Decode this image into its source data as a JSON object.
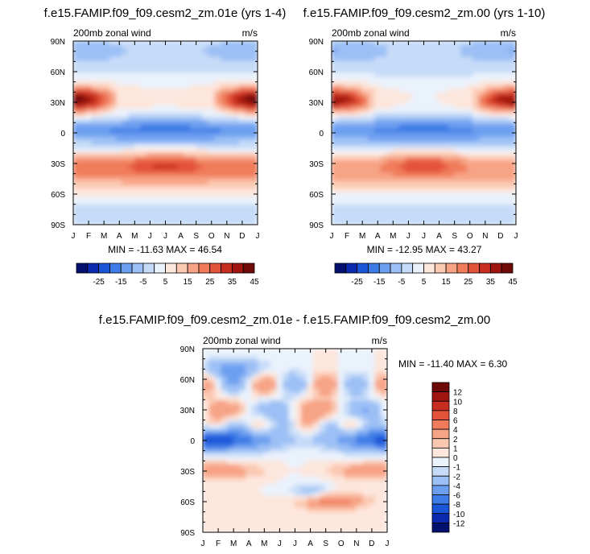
{
  "colors": {
    "abs_scale": [
      "#04106e",
      "#0a2bb0",
      "#1a56d8",
      "#3d7ce6",
      "#6d9ff0",
      "#9cc0f5",
      "#c6dbf8",
      "#eaf2fc",
      "#fde6dc",
      "#fbc9b2",
      "#f7a385",
      "#f07c5c",
      "#e3533a",
      "#c72e1f",
      "#a01510",
      "#6e0a08"
    ],
    "diff_scale": [
      "#04106e",
      "#0a2bb0",
      "#1a56d8",
      "#3d7ce6",
      "#6d9ff0",
      "#9cc0f5",
      "#c6dbf8",
      "#eaf2fc",
      "#fde6dc",
      "#fbc9b2",
      "#f7a385",
      "#f07c5c",
      "#e3533a",
      "#c72e1f",
      "#a01510",
      "#6e0a08"
    ]
  },
  "chart_data": [
    {
      "type": "heatmap",
      "title": "f.e15.FAMIP.f09_f09.cesm2_zm.01e (yrs 1-4)",
      "left_label": "200mb zonal wind",
      "right_label": "m/s",
      "x_tick_labels": [
        "J",
        "F",
        "M",
        "A",
        "M",
        "J",
        "J",
        "A",
        "S",
        "O",
        "N",
        "D",
        "J"
      ],
      "y_tick_labels": [
        "90N",
        "60N",
        "30N",
        "0",
        "30S",
        "60S",
        "90S"
      ],
      "y_values": [
        90,
        60,
        30,
        0,
        -30,
        -60,
        -90
      ],
      "stats_label": "MIN = -11.63 MAX =  46.54",
      "min": -11.63,
      "max": 46.54,
      "colorbar_labels": [
        "-25",
        "-15",
        "-5",
        "5",
        "15",
        "25",
        "35",
        "45"
      ],
      "colorbar_levels": [
        -30,
        -25,
        -20,
        -15,
        -10,
        -5,
        0,
        5,
        10,
        15,
        20,
        25,
        30,
        35,
        40,
        45,
        50
      ]
    },
    {
      "type": "heatmap",
      "title": "f.e15.FAMIP.f09_f09.cesm2_zm.00 (yrs 1-10)",
      "left_label": "200mb zonal wind",
      "right_label": "m/s",
      "x_tick_labels": [
        "J",
        "F",
        "M",
        "A",
        "M",
        "J",
        "J",
        "A",
        "S",
        "O",
        "N",
        "D",
        "J"
      ],
      "y_tick_labels": [
        "90N",
        "60N",
        "30N",
        "0",
        "30S",
        "60S",
        "90S"
      ],
      "y_values": [
        90,
        60,
        30,
        0,
        -30,
        -60,
        -90
      ],
      "stats_label": "MIN = -12.95 MAX =  43.27",
      "min": -12.95,
      "max": 43.27,
      "colorbar_labels": [
        "-25",
        "-15",
        "-5",
        "5",
        "15",
        "25",
        "35",
        "45"
      ],
      "colorbar_levels": [
        -30,
        -25,
        -20,
        -15,
        -10,
        -5,
        0,
        5,
        10,
        15,
        20,
        25,
        30,
        35,
        40,
        45,
        50
      ]
    },
    {
      "type": "heatmap",
      "title": "f.e15.FAMIP.f09_f09.cesm2_zm.01e - f.e15.FAMIP.f09_f09.cesm2_zm.00",
      "left_label": "200mb zonal wind",
      "right_label": "m/s",
      "x_tick_labels": [
        "J",
        "F",
        "M",
        "A",
        "M",
        "J",
        "J",
        "A",
        "S",
        "O",
        "N",
        "D",
        "J"
      ],
      "y_tick_labels": [
        "90N",
        "60N",
        "30N",
        "0",
        "30S",
        "60S",
        "90S"
      ],
      "y_values": [
        90,
        60,
        30,
        0,
        -30,
        -60,
        -90
      ],
      "stats_label": "MIN = -11.40 MAX =   6.30",
      "min": -11.4,
      "max": 6.3,
      "colorbar_labels": [
        "12",
        "10",
        "8",
        "6",
        "4",
        "2",
        "1",
        "0",
        "-1",
        "-2",
        "-4",
        "-6",
        "-8",
        "-10",
        "-12"
      ]
    }
  ]
}
